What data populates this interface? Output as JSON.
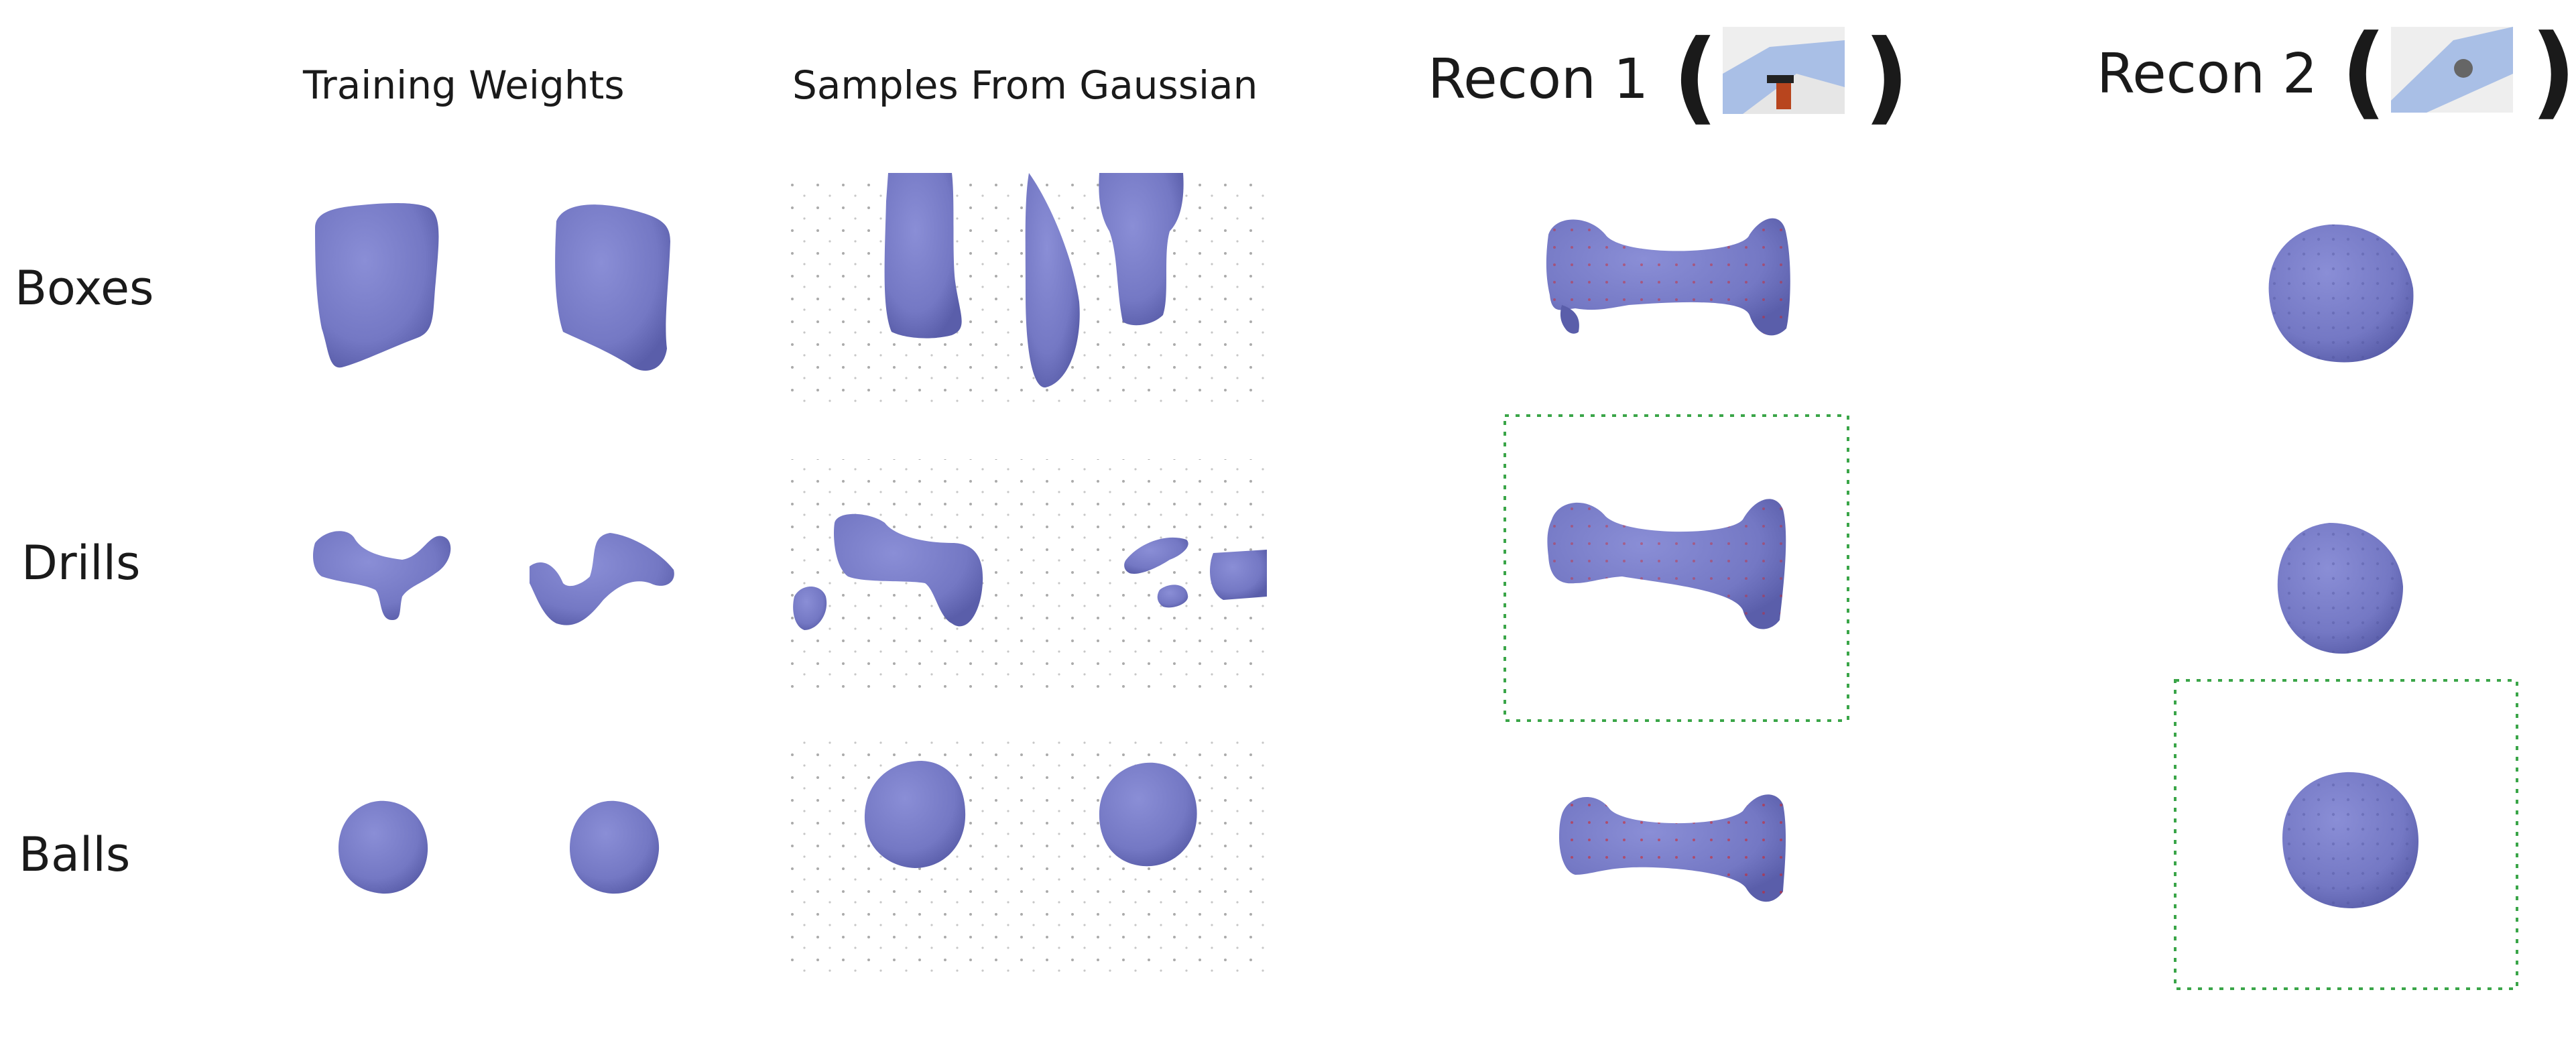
{
  "headers": {
    "training_weights": "Training Weights",
    "samples_from_gaussian": "Samples From Gaussian",
    "recon1": "Recon 1",
    "recon2": "Recon 2",
    "paren_open": "(",
    "paren_close": ")"
  },
  "rows": {
    "boxes": "Boxes",
    "drills": "Drills",
    "balls": "Balls"
  },
  "colors": {
    "shape": "#7478c4",
    "shape_dark": "#5a5eaa",
    "selection_box": "#3aa548",
    "grid_dot": "#555555",
    "red_dot": "#d42020",
    "floor_tile": "#a9bfe6",
    "robot": "#b8451e"
  }
}
